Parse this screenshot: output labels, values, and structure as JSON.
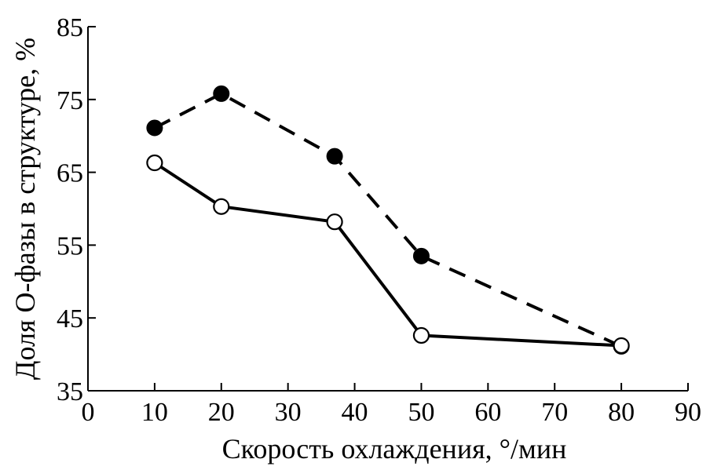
{
  "chart_data": {
    "type": "line",
    "xlabel": "Скорость охлаждения, °/мин",
    "ylabel": "Доля О-фазы в структуре, %",
    "xlim": [
      0,
      90
    ],
    "ylim": [
      35,
      85
    ],
    "x_ticks": [
      "0",
      "10",
      "20",
      "30",
      "40",
      "50",
      "60",
      "70",
      "80",
      "90"
    ],
    "y_ticks": [
      "35",
      "45",
      "55",
      "65",
      "75",
      "85"
    ],
    "grid": false,
    "series": [
      {
        "style": "dashed",
        "marker": "filled-circle",
        "x": [
          10,
          20,
          37,
          50,
          80
        ],
        "y": [
          71.1,
          75.8,
          67.2,
          53.5,
          41.1
        ]
      },
      {
        "style": "solid",
        "marker": "open-circle",
        "x": [
          10,
          20,
          37,
          50,
          80
        ],
        "y": [
          66.3,
          60.3,
          58.2,
          42.6,
          41.2
        ]
      }
    ]
  }
}
